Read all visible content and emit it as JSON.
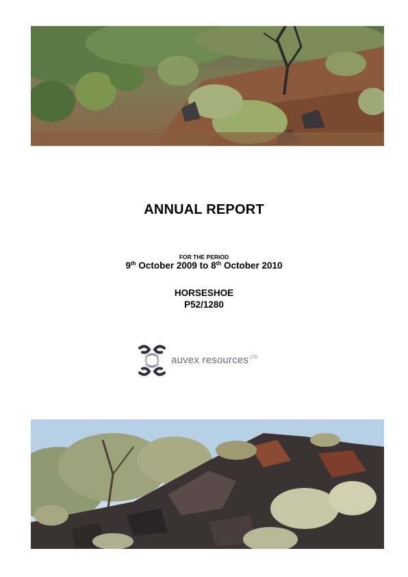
{
  "report": {
    "title": "ANNUAL REPORT",
    "period_label": "FOR THE PERIOD",
    "period_start_day": "9",
    "period_start_suffix": "th",
    "period_start_rest": " October 2009 to 8",
    "period_end_suffix": "th",
    "period_end_rest": " October 2010",
    "project_name": "HORSESHOE",
    "tenement": "P52/1280"
  },
  "logo": {
    "company_name": "auvex resources",
    "suffix": "LTD",
    "mark_icon": "auvex-logo-mark-icon",
    "text_color": "#6a6a86"
  },
  "images": {
    "top": "outback-shrubland-photo",
    "bottom": "ironstone-outcrop-photo"
  }
}
